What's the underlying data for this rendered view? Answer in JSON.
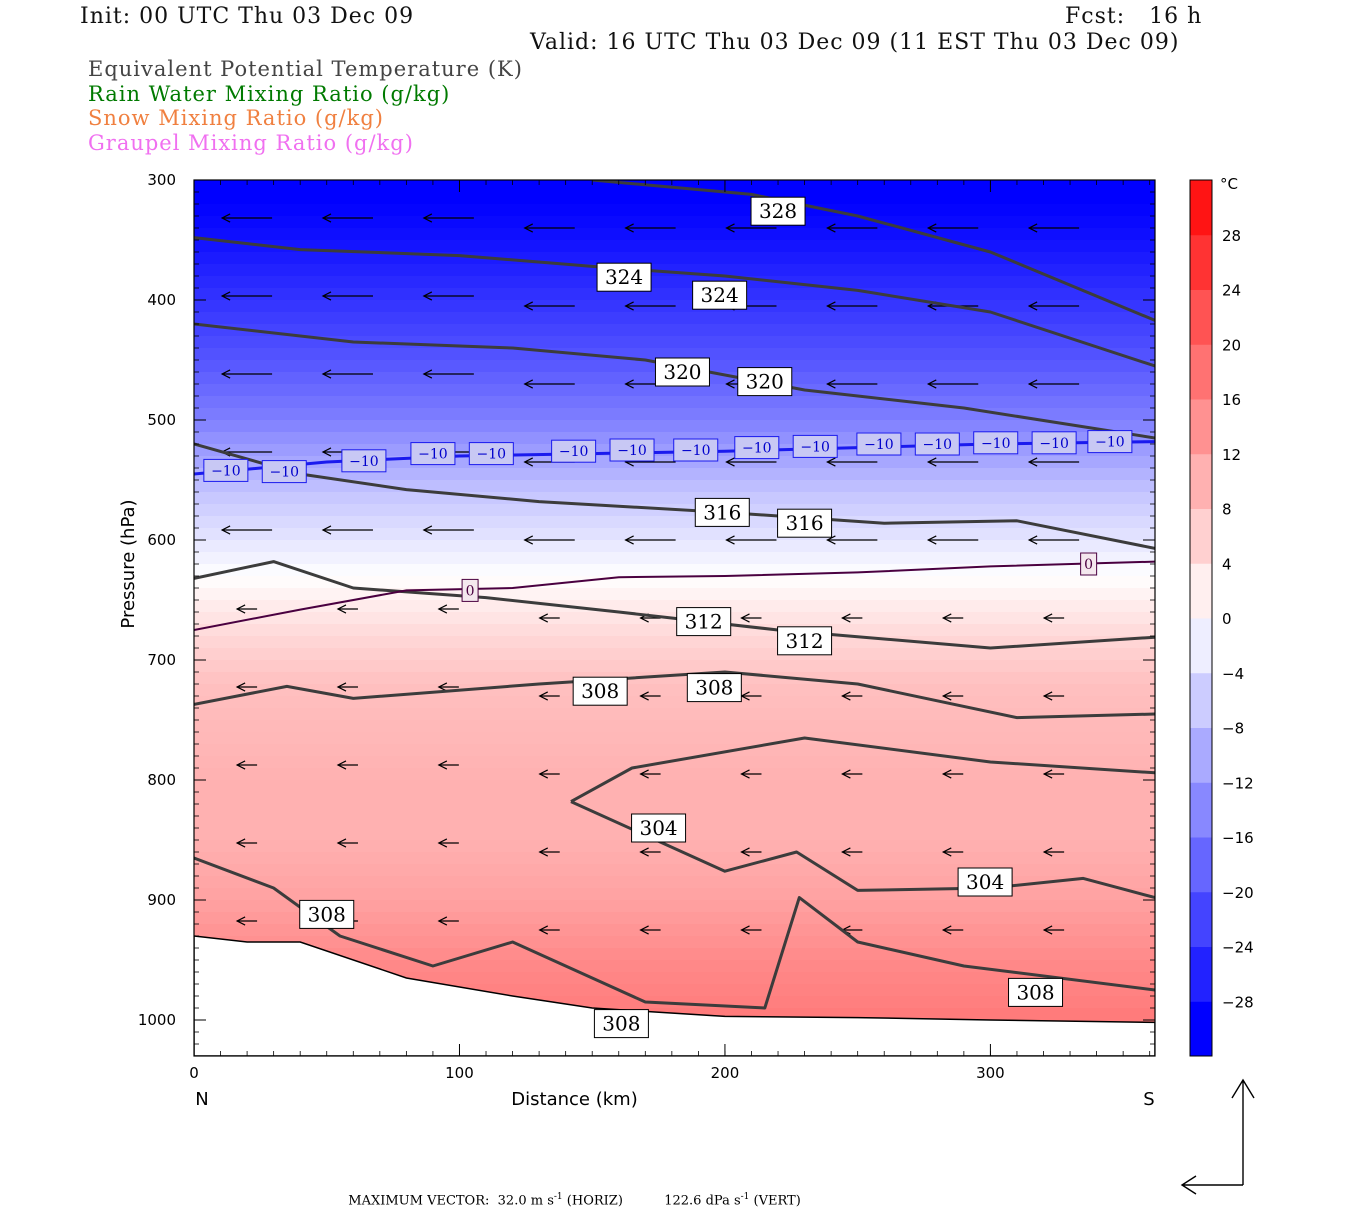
{
  "header": {
    "init": "Init: 00 UTC Thu 03 Dec 09",
    "fcst": "Fcst:   16 h",
    "valid": "Valid: 16 UTC Thu 03 Dec 09 (11 EST Thu 03 Dec 09)"
  },
  "legend": [
    {
      "text": "Equivalent Potential Temperature (K)",
      "color": "#444444"
    },
    {
      "text": "Rain Water Mixing Ratio (g/kg)",
      "color": "#007a00"
    },
    {
      "text": "Snow Mixing Ratio (g/kg)",
      "color": "#f08040"
    },
    {
      "text": "Graupel Mixing Ratio (g/kg)",
      "color": "#f070f0"
    }
  ],
  "footer": {
    "max_vector_label": "MAXIMUM VECTOR:",
    "horiz": "32.0 m s",
    "horiz_unit": "(HORIZ)",
    "vert": "122.6 dPa s",
    "vert_unit": "(VERT)",
    "exponent": "-1"
  },
  "chart_data": {
    "type": "heatmap",
    "xlabel": "Distance (km)",
    "ylabel": "Pressure (hPa)",
    "xlim": [
      0,
      362
    ],
    "ylim": [
      1030,
      300
    ],
    "x_ticks": [
      0,
      100,
      200,
      300
    ],
    "y_ticks": [
      300,
      400,
      500,
      600,
      700,
      800,
      900,
      1000
    ],
    "x_end_labels": {
      "left": "N",
      "right": "S"
    },
    "colorbar": {
      "unit": "°C",
      "labels": [
        28,
        24,
        20,
        16,
        12,
        8,
        4,
        0,
        -4,
        -8,
        -12,
        -16,
        -20,
        -24,
        -28
      ],
      "range": [
        -32,
        32
      ]
    },
    "temperature_profile": {
      "pressure": [
        300,
        350,
        400,
        450,
        500,
        530,
        560,
        600,
        620,
        640,
        680,
        720,
        760,
        800,
        850,
        900,
        950,
        1000
      ],
      "celsius": [
        -31,
        -28,
        -24,
        -20,
        -15,
        -11,
        -7,
        -3,
        -1,
        1,
        5,
        8,
        9,
        10,
        10,
        12,
        15,
        17
      ]
    },
    "theta_e_contours": [
      {
        "level": 328,
        "points": [
          [
            150,
            300
          ],
          [
            210,
            312
          ],
          [
            250,
            330
          ],
          [
            300,
            360
          ],
          [
            362,
            417
          ]
        ]
      },
      {
        "level": 324,
        "points": [
          [
            0,
            348
          ],
          [
            40,
            358
          ],
          [
            100,
            363
          ],
          [
            150,
            372
          ],
          [
            200,
            380
          ],
          [
            250,
            392
          ],
          [
            300,
            410
          ],
          [
            362,
            455
          ]
        ]
      },
      {
        "level": 320,
        "points": [
          [
            0,
            420
          ],
          [
            60,
            435
          ],
          [
            120,
            440
          ],
          [
            170,
            450
          ],
          [
            230,
            475
          ],
          [
            290,
            490
          ],
          [
            362,
            515
          ]
        ]
      },
      {
        "level": 316,
        "points": [
          [
            0,
            520
          ],
          [
            40,
            545
          ],
          [
            80,
            558
          ],
          [
            130,
            568
          ],
          [
            200,
            577
          ],
          [
            260,
            586
          ],
          [
            310,
            584
          ],
          [
            362,
            607
          ]
        ]
      },
      {
        "level": 312,
        "points": [
          [
            0,
            632
          ],
          [
            30,
            618
          ],
          [
            60,
            640
          ],
          [
            110,
            648
          ],
          [
            160,
            660
          ],
          [
            220,
            675
          ],
          [
            300,
            690
          ],
          [
            362,
            681
          ]
        ]
      },
      {
        "level": 308,
        "points": [
          [
            0,
            737
          ],
          [
            35,
            722
          ],
          [
            60,
            732
          ],
          [
            130,
            720
          ],
          [
            200,
            710
          ],
          [
            250,
            720
          ],
          [
            310,
            748
          ],
          [
            362,
            745
          ]
        ]
      },
      {
        "level": 304,
        "points": [
          [
            142,
            818
          ],
          [
            165,
            790
          ],
          [
            230,
            765
          ],
          [
            300,
            785
          ],
          [
            362,
            794
          ]
        ]
      },
      {
        "level": 304,
        "points": [
          [
            142,
            818
          ],
          [
            170,
            846
          ],
          [
            200,
            876
          ],
          [
            227,
            860
          ],
          [
            250,
            892
          ],
          [
            300,
            890
          ],
          [
            335,
            882
          ],
          [
            362,
            898
          ]
        ]
      },
      {
        "level": 308,
        "points": [
          [
            0,
            865
          ],
          [
            30,
            890
          ],
          [
            55,
            930
          ],
          [
            90,
            955
          ],
          [
            120,
            935
          ],
          [
            150,
            965
          ],
          [
            170,
            985
          ],
          [
            215,
            990
          ],
          [
            228,
            898
          ],
          [
            250,
            935
          ],
          [
            290,
            955
          ],
          [
            362,
            975
          ]
        ]
      }
    ],
    "contour_labels": [
      {
        "text": "328",
        "x": 220,
        "y": 326
      },
      {
        "text": "324",
        "x": 162,
        "y": 381
      },
      {
        "text": "324",
        "x": 198,
        "y": 396
      },
      {
        "text": "320",
        "x": 184,
        "y": 460
      },
      {
        "text": "320",
        "x": 215,
        "y": 468
      },
      {
        "text": "316",
        "x": 199,
        "y": 577
      },
      {
        "text": "316",
        "x": 230,
        "y": 586
      },
      {
        "text": "312",
        "x": 192,
        "y": 668
      },
      {
        "text": "312",
        "x": 230,
        "y": 684
      },
      {
        "text": "308",
        "x": 153,
        "y": 726
      },
      {
        "text": "308",
        "x": 196,
        "y": 723
      },
      {
        "text": "304",
        "x": 175,
        "y": 840
      },
      {
        "text": "304",
        "x": 298,
        "y": 885
      },
      {
        "text": "308",
        "x": 50,
        "y": 912
      },
      {
        "text": "308",
        "x": 317,
        "y": 977
      },
      {
        "text": "308",
        "x": 161,
        "y": 1003
      }
    ],
    "isotherm_minus10": {
      "level": -10,
      "points": [
        [
          0,
          545
        ],
        [
          50,
          535
        ],
        [
          100,
          530
        ],
        [
          150,
          528
        ],
        [
          200,
          526
        ],
        [
          250,
          523
        ],
        [
          300,
          520
        ],
        [
          362,
          518
        ]
      ]
    },
    "isotherm_minus10_labels": [
      {
        "text": "-10",
        "x": 12,
        "y": 542
      },
      {
        "text": "-10",
        "x": 34,
        "y": 543
      },
      {
        "text": "-10",
        "x": 64,
        "y": 534
      },
      {
        "text": "-10",
        "x": 90,
        "y": 528
      },
      {
        "text": "-10",
        "x": 112,
        "y": 528
      },
      {
        "text": "-10",
        "x": 143,
        "y": 526
      },
      {
        "text": "-10",
        "x": 165,
        "y": 525
      },
      {
        "text": "-10",
        "x": 189,
        "y": 525
      },
      {
        "text": "-10",
        "x": 212,
        "y": 523
      },
      {
        "text": "-10",
        "x": 234,
        "y": 522
      },
      {
        "text": "-10",
        "x": 258,
        "y": 520
      },
      {
        "text": "-10",
        "x": 280,
        "y": 520
      },
      {
        "text": "-10",
        "x": 302,
        "y": 519
      },
      {
        "text": "-10",
        "x": 324,
        "y": 519
      },
      {
        "text": "-10",
        "x": 345,
        "y": 518
      }
    ],
    "isotherm_zero": {
      "level": 0,
      "points": [
        [
          0,
          675
        ],
        [
          40,
          658
        ],
        [
          80,
          642
        ],
        [
          120,
          640
        ],
        [
          160,
          631
        ],
        [
          200,
          630
        ],
        [
          250,
          627
        ],
        [
          300,
          622
        ],
        [
          362,
          618
        ]
      ]
    },
    "isotherm_zero_labels": [
      {
        "text": "0",
        "x": 104,
        "y": 642
      },
      {
        "text": "0",
        "x": 337,
        "y": 620
      }
    ],
    "terrain": {
      "points": [
        [
          0,
          930
        ],
        [
          20,
          935
        ],
        [
          40,
          935
        ],
        [
          80,
          965
        ],
        [
          120,
          980
        ],
        [
          150,
          990
        ],
        [
          200,
          997
        ],
        [
          250,
          998
        ],
        [
          300,
          1000
        ],
        [
          362,
          1002
        ]
      ]
    },
    "wind_vectors_sample": [
      {
        "x": 40,
        "y": 350,
        "u": -1,
        "w": 0.4
      },
      {
        "x": 80,
        "y": 360,
        "u": -0.9,
        "w": 0.5
      },
      {
        "x": 120,
        "y": 365,
        "u": -0.9,
        "w": 0.35
      },
      {
        "x": 200,
        "y": 370,
        "u": -0.8,
        "w": 0
      }
    ]
  }
}
